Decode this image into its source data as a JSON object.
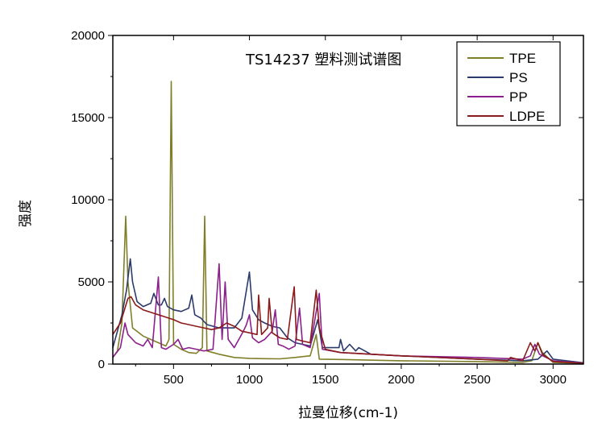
{
  "chart_data": {
    "type": "line",
    "title": "TS14237 塑料测试谱图",
    "xlabel": "拉曼位移(cm-1)",
    "ylabel": "强度",
    "xlim": [
      100,
      3200
    ],
    "ylim": [
      0,
      20000
    ],
    "x_ticks": [
      500,
      1000,
      1500,
      2000,
      2500,
      3000
    ],
    "y_ticks": [
      0,
      5000,
      10000,
      15000,
      20000
    ],
    "grid": false,
    "legend_position": "top-right",
    "series": [
      {
        "name": "TPE",
        "color": "#7f7f2a",
        "points": [
          [
            100,
            400
          ],
          [
            130,
            800
          ],
          [
            160,
            2500
          ],
          [
            185,
            9000
          ],
          [
            200,
            5000
          ],
          [
            230,
            2200
          ],
          [
            300,
            1700
          ],
          [
            400,
            1300
          ],
          [
            450,
            1100
          ],
          [
            470,
            1500
          ],
          [
            485,
            17200
          ],
          [
            500,
            1200
          ],
          [
            550,
            900
          ],
          [
            600,
            700
          ],
          [
            650,
            650
          ],
          [
            690,
            1000
          ],
          [
            705,
            9000
          ],
          [
            720,
            800
          ],
          [
            800,
            600
          ],
          [
            900,
            400
          ],
          [
            1000,
            350
          ],
          [
            1100,
            330
          ],
          [
            1200,
            320
          ],
          [
            1300,
            400
          ],
          [
            1400,
            500
          ],
          [
            1440,
            1800
          ],
          [
            1460,
            300
          ],
          [
            1600,
            280
          ],
          [
            2000,
            200
          ],
          [
            2500,
            150
          ],
          [
            2800,
            100
          ],
          [
            2860,
            200
          ],
          [
            2900,
            1300
          ],
          [
            2930,
            700
          ],
          [
            3000,
            100
          ],
          [
            3200,
            50
          ]
        ]
      },
      {
        "name": "PS",
        "color": "#2b3a6b",
        "points": [
          [
            100,
            1000
          ],
          [
            130,
            2000
          ],
          [
            160,
            3000
          ],
          [
            190,
            4500
          ],
          [
            215,
            6400
          ],
          [
            230,
            5000
          ],
          [
            260,
            3800
          ],
          [
            300,
            3500
          ],
          [
            350,
            3700
          ],
          [
            370,
            4300
          ],
          [
            400,
            3600
          ],
          [
            420,
            3600
          ],
          [
            440,
            4000
          ],
          [
            460,
            3500
          ],
          [
            500,
            3300
          ],
          [
            550,
            3200
          ],
          [
            600,
            3400
          ],
          [
            620,
            4200
          ],
          [
            640,
            3000
          ],
          [
            680,
            2800
          ],
          [
            700,
            2600
          ],
          [
            720,
            2400
          ],
          [
            800,
            2200
          ],
          [
            850,
            2200
          ],
          [
            900,
            2200
          ],
          [
            950,
            2800
          ],
          [
            1000,
            5600
          ],
          [
            1020,
            3300
          ],
          [
            1060,
            2700
          ],
          [
            1100,
            2500
          ],
          [
            1150,
            2300
          ],
          [
            1200,
            2200
          ],
          [
            1250,
            1600
          ],
          [
            1300,
            1300
          ],
          [
            1400,
            1100
          ],
          [
            1450,
            2700
          ],
          [
            1480,
            1000
          ],
          [
            1590,
            1000
          ],
          [
            1600,
            1500
          ],
          [
            1620,
            800
          ],
          [
            1660,
            1200
          ],
          [
            1700,
            800
          ],
          [
            1720,
            1000
          ],
          [
            1800,
            600
          ],
          [
            2000,
            500
          ],
          [
            2500,
            300
          ],
          [
            2800,
            200
          ],
          [
            2900,
            300
          ],
          [
            2960,
            800
          ],
          [
            3000,
            300
          ],
          [
            3200,
            80
          ]
        ]
      },
      {
        "name": "PP",
        "color": "#8b1f8b",
        "points": [
          [
            100,
            400
          ],
          [
            150,
            1000
          ],
          [
            180,
            2500
          ],
          [
            200,
            1800
          ],
          [
            250,
            1300
          ],
          [
            300,
            1100
          ],
          [
            330,
            1500
          ],
          [
            360,
            1000
          ],
          [
            400,
            5300
          ],
          [
            420,
            1000
          ],
          [
            450,
            900
          ],
          [
            500,
            1200
          ],
          [
            530,
            1500
          ],
          [
            560,
            900
          ],
          [
            600,
            1000
          ],
          [
            650,
            900
          ],
          [
            700,
            800
          ],
          [
            760,
            900
          ],
          [
            800,
            6100
          ],
          [
            820,
            1500
          ],
          [
            840,
            5000
          ],
          [
            860,
            1500
          ],
          [
            900,
            1000
          ],
          [
            930,
            1500
          ],
          [
            960,
            2000
          ],
          [
            980,
            2400
          ],
          [
            1000,
            3000
          ],
          [
            1020,
            1600
          ],
          [
            1060,
            1300
          ],
          [
            1100,
            1500
          ],
          [
            1150,
            2000
          ],
          [
            1170,
            3300
          ],
          [
            1190,
            1200
          ],
          [
            1220,
            1100
          ],
          [
            1260,
            900
          ],
          [
            1300,
            1100
          ],
          [
            1330,
            3400
          ],
          [
            1350,
            1200
          ],
          [
            1400,
            1000
          ],
          [
            1460,
            4300
          ],
          [
            1480,
            900
          ],
          [
            1600,
            700
          ],
          [
            2000,
            500
          ],
          [
            2500,
            400
          ],
          [
            2800,
            300
          ],
          [
            2850,
            500
          ],
          [
            2880,
            1200
          ],
          [
            2910,
            600
          ],
          [
            3000,
            200
          ],
          [
            3200,
            60
          ]
        ]
      },
      {
        "name": "LDPE",
        "color": "#8b1a1a",
        "points": [
          [
            100,
            1800
          ],
          [
            150,
            2500
          ],
          [
            200,
            4000
          ],
          [
            220,
            4100
          ],
          [
            250,
            3600
          ],
          [
            300,
            3300
          ],
          [
            400,
            3000
          ],
          [
            500,
            2700
          ],
          [
            550,
            2500
          ],
          [
            600,
            2400
          ],
          [
            650,
            2300
          ],
          [
            700,
            2200
          ],
          [
            750,
            2100
          ],
          [
            800,
            2200
          ],
          [
            850,
            2500
          ],
          [
            900,
            2300
          ],
          [
            950,
            2000
          ],
          [
            1000,
            1900
          ],
          [
            1050,
            1800
          ],
          [
            1060,
            4200
          ],
          [
            1080,
            1800
          ],
          [
            1120,
            2200
          ],
          [
            1130,
            4000
          ],
          [
            1150,
            1900
          ],
          [
            1200,
            1600
          ],
          [
            1250,
            1500
          ],
          [
            1295,
            4700
          ],
          [
            1310,
            1500
          ],
          [
            1350,
            1400
          ],
          [
            1400,
            1300
          ],
          [
            1440,
            4500
          ],
          [
            1460,
            2200
          ],
          [
            1500,
            900
          ],
          [
            1600,
            700
          ],
          [
            2000,
            500
          ],
          [
            2500,
            300
          ],
          [
            2700,
            200
          ],
          [
            2720,
            400
          ],
          [
            2800,
            200
          ],
          [
            2850,
            1300
          ],
          [
            2880,
            800
          ],
          [
            2900,
            1300
          ],
          [
            2930,
            600
          ],
          [
            3000,
            150
          ],
          [
            3200,
            50
          ]
        ]
      }
    ]
  }
}
